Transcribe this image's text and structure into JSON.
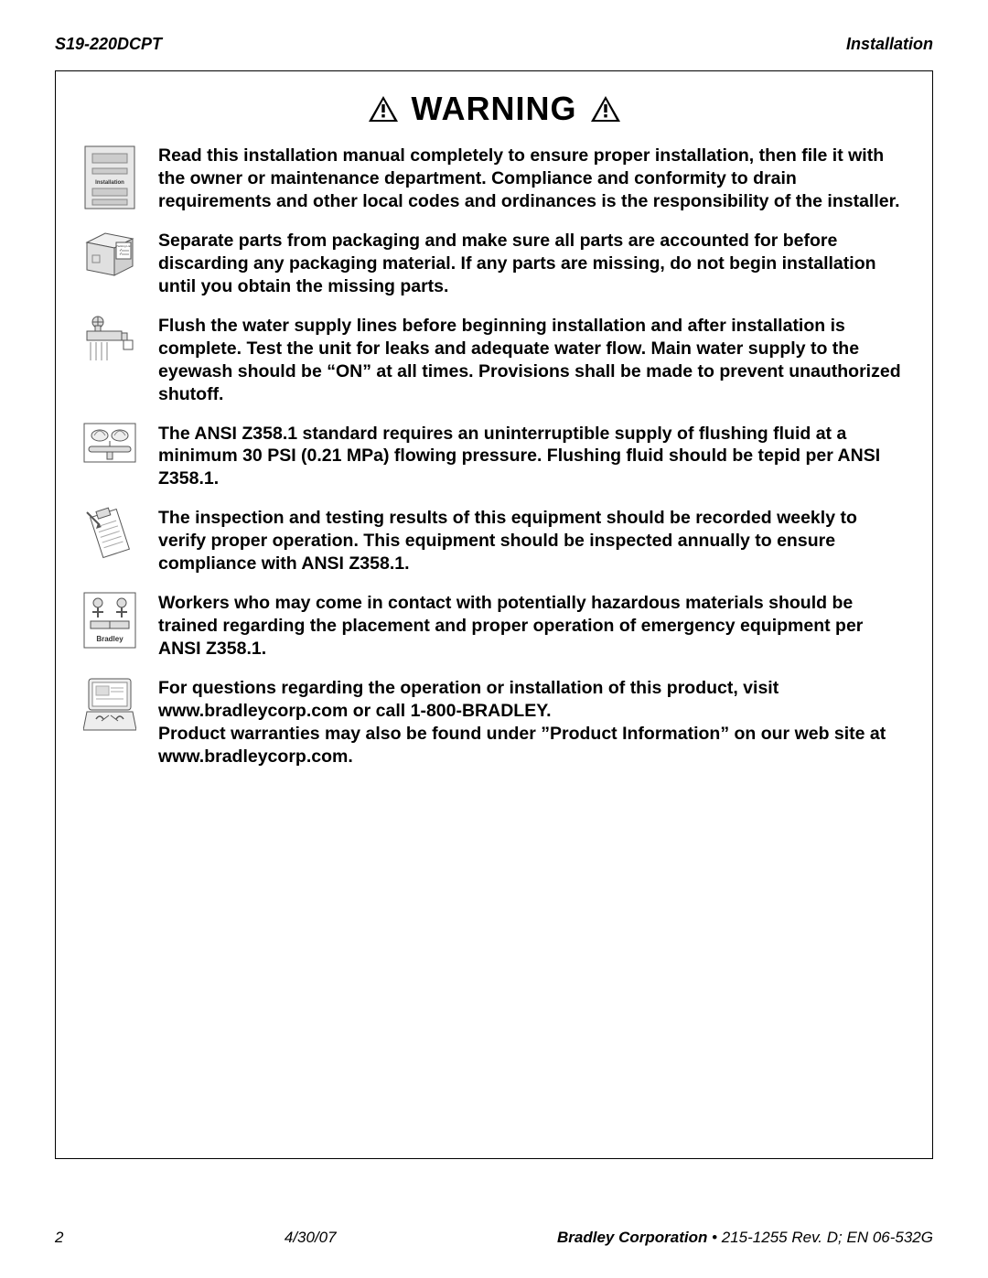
{
  "header": {
    "left": "S19-220DCPT",
    "right": "Installation"
  },
  "warning_label": "WARNING",
  "items": [
    {
      "icon": "manual",
      "text": "Read this installation manual completely to ensure proper installation, then file it with the owner or maintenance department. Compliance and conformity to drain requirements and other local codes and ordinances is the responsibility of the installer."
    },
    {
      "icon": "box",
      "text": "Separate parts from packaging and make sure all parts are accounted for before discarding any packaging material. If any parts are missing, do not begin installation until you obtain the missing parts."
    },
    {
      "icon": "faucet",
      "text": "Flush the water supply lines before beginning installation and after installation is complete. Test the unit for leaks and adequate water flow. Main water supply to the eyewash should be “ON” at all times. Provisions shall be made to prevent unauthorized shutoff."
    },
    {
      "icon": "eyewash",
      "text": "The ANSI Z358.1 standard requires an uninterruptible supply of flushing fluid at a minimum 30 PSI (0.21 MPa) flowing pressure. Flushing fluid should be tepid per ANSI Z358.1."
    },
    {
      "icon": "clipboard",
      "text": "The inspection and testing results of this equipment should be recorded weekly to verify proper operation. This equipment should be inspected annually to ensure compliance with ANSI Z358.1."
    },
    {
      "icon": "training",
      "text": "Workers who may come in contact with potentially hazardous materials should be trained regarding the placement and proper operation of emergency equipment per ANSI Z358.1."
    },
    {
      "icon": "computer",
      "text": "For questions regarding the operation or installation of this product, visit www.bradleycorp.com or call 1-800-BRADLEY.\nProduct warranties may also be found under ”Product Information” on our web site at www.bradleycorp.com."
    }
  ],
  "footer": {
    "page": "2",
    "date": "4/30/07",
    "company_bold": "Bradley Corporation",
    "doc_ref": " • 215-1255 Rev. D; EN 06-532G"
  },
  "colors": {
    "text": "#000000",
    "icon_stroke": "#555555",
    "icon_fill": "#dddddd",
    "background": "#ffffff"
  }
}
